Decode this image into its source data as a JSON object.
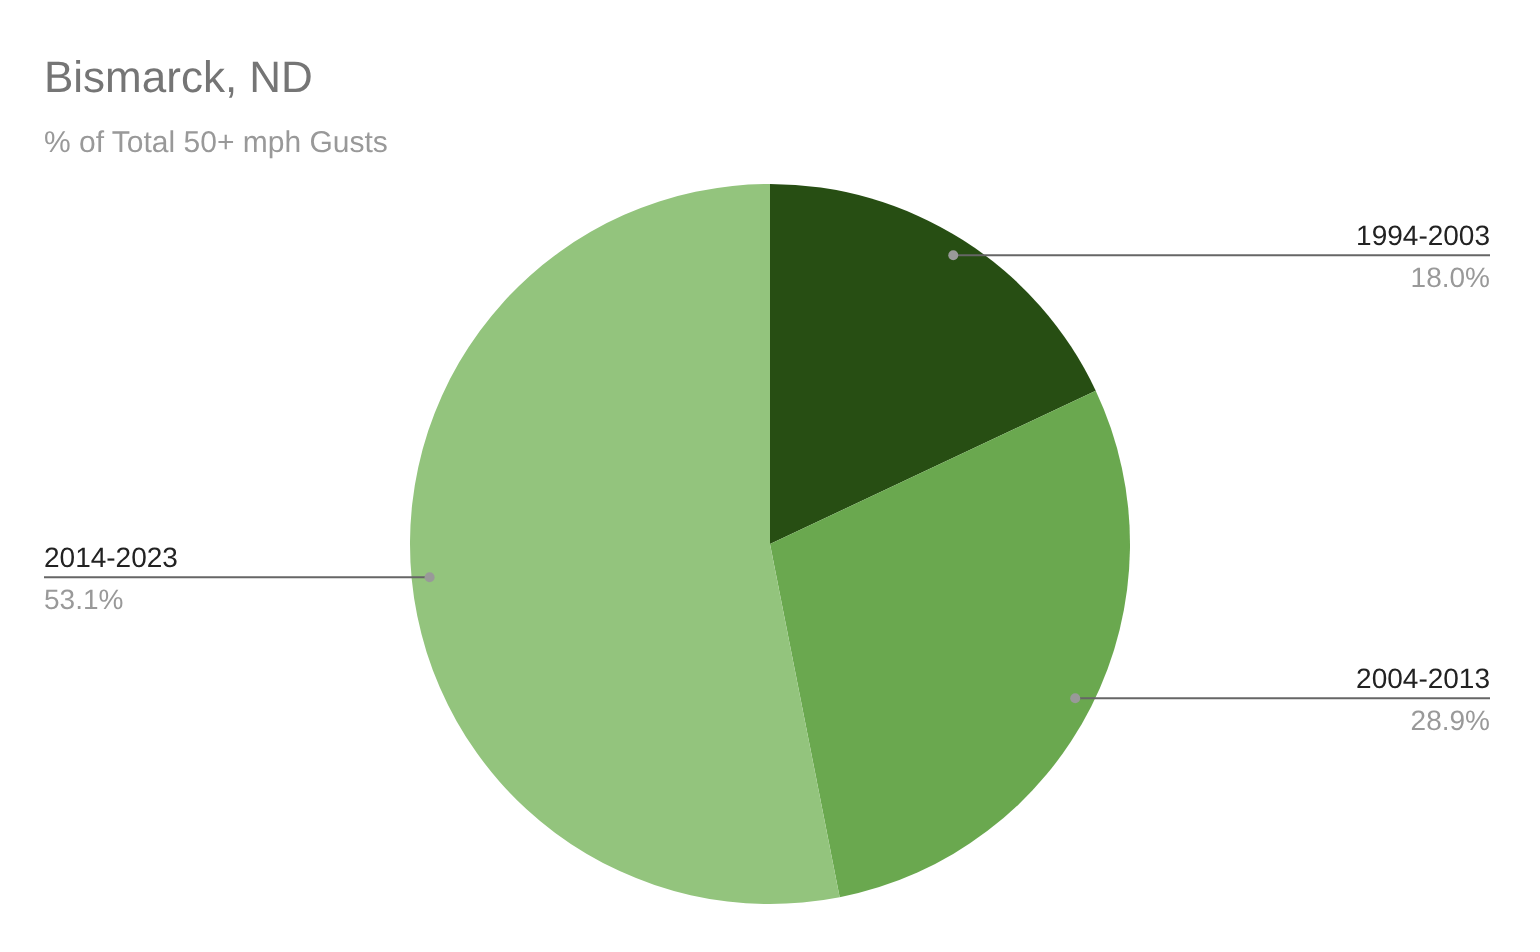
{
  "chart_data": {
    "type": "pie",
    "title": "Bismarck, ND",
    "subtitle": "% of Total 50+ mph Gusts",
    "categories": [
      "1994-2003",
      "2004-2013",
      "2014-2023"
    ],
    "values": [
      18.0,
      28.9,
      53.1
    ],
    "colors": [
      "#274e13",
      "#6aa84f",
      "#93c47d"
    ],
    "value_labels": [
      "18.0%",
      "28.9%",
      "53.1%"
    ]
  }
}
